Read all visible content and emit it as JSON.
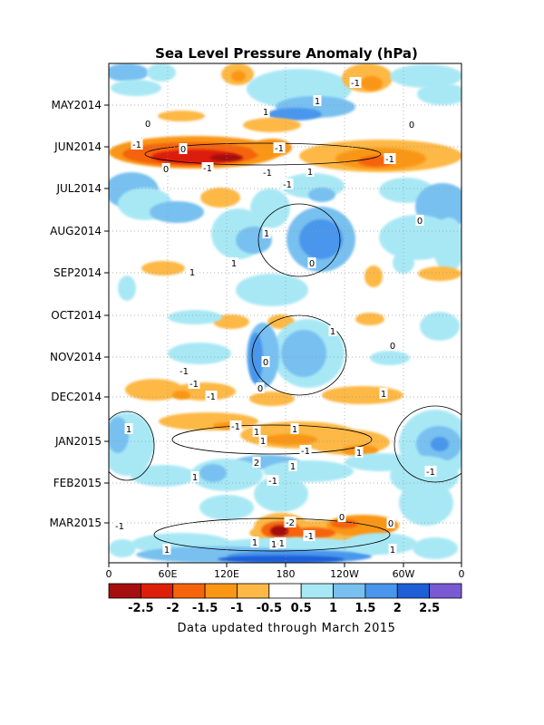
{
  "chart_data": {
    "type": "heatmap",
    "title": "Sea Level Pressure Anomaly (hPa)",
    "footnote": "Data updated through March 2015",
    "x_tick_labels": [
      "0",
      "60E",
      "120E",
      "180",
      "120W",
      "60W",
      "0"
    ],
    "y_tick_labels": [
      "MAY2014",
      "JUN2014",
      "JUL2014",
      "AUG2014",
      "SEP2014",
      "OCT2014",
      "NOV2014",
      "DEC2014",
      "JAN2015",
      "FEB2015",
      "MAR2015"
    ],
    "x_range": [
      "0",
      "0"
    ],
    "y_range": [
      "APR2014",
      "MAR2015"
    ],
    "colorbar_labels": [
      "-2.5",
      "-2",
      "-1.5",
      "-1",
      "-0.5",
      "0.5",
      "1",
      "1.5",
      "2",
      "2.5"
    ],
    "colorbar_colors": [
      "#a50f0f",
      "#dc1e0a",
      "#f5640a",
      "#fa9614",
      "#fdb845",
      "#ffffff",
      "#a8e8f5",
      "#78c0f0",
      "#4a96ec",
      "#1e5fd8",
      "#7a5ad2"
    ],
    "contour_labels": [
      "-1",
      "1",
      "0",
      "0",
      "1",
      "-1",
      "0",
      "-1",
      "-1",
      "-1",
      "0",
      "1",
      "-1",
      "-1",
      "0",
      "1",
      "0",
      "1",
      "1",
      "0",
      "1",
      "0",
      "-1",
      "1",
      "-1",
      "0",
      "-1",
      "1",
      "1",
      "-1",
      "1",
      "1",
      "1",
      "-1",
      "-1",
      "1",
      "2",
      "1",
      "-1",
      "-2",
      "0",
      "-1",
      "-1",
      "1",
      "1",
      "-1",
      "1",
      "1",
      "0"
    ],
    "grid": true
  }
}
